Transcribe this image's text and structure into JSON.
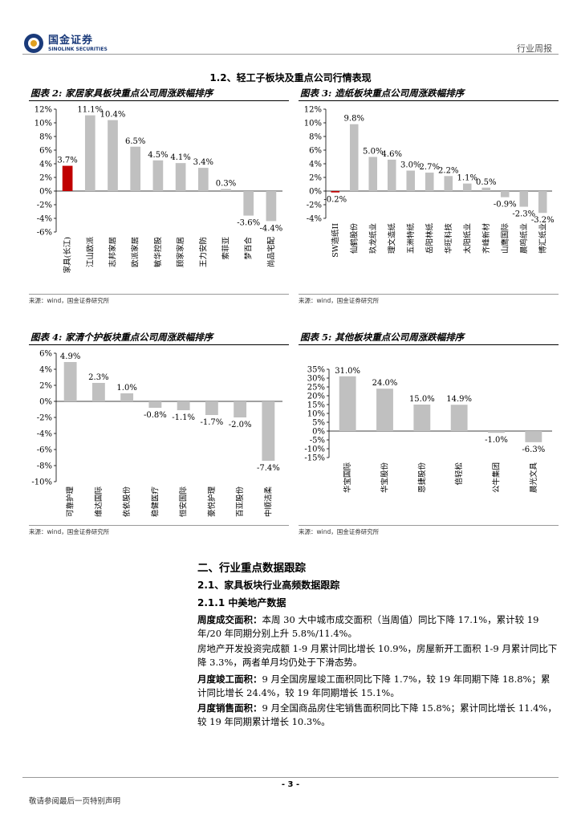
{
  "header": {
    "brand_cn": "国金证券",
    "brand_en": "SINOLINK SECURITIES",
    "report_type": "行业周报"
  },
  "section_heading": "1.2、轻工子板块及重点公司行情表现",
  "figures": [
    {
      "title": "图表 2:  家居家具板块重点公司周涨跌幅排序",
      "source": "来源：wind，国金证券研究所"
    },
    {
      "title": "图表 3:  造纸板块重点公司周涨跌幅排序",
      "source": "来源：wind，国金证券研究所"
    },
    {
      "title": "图表 4:  家清个护板块重点公司周涨跌幅排序",
      "source": "来源：wind，国金证券研究所"
    },
    {
      "title": "图表 5:  其他板块重点公司周涨跌幅排序",
      "source": "来源：wind，国金证券研究所"
    }
  ],
  "chart_data": [
    {
      "type": "bar",
      "categories": [
        "家具(长江)",
        "江山欧派",
        "志邦家居",
        "欧派家居",
        "敏华控股",
        "顾家家居",
        "王力安防",
        "索菲亚",
        "梦百合",
        "尚品宅配"
      ],
      "values": [
        3.7,
        11.1,
        10.4,
        6.5,
        4.5,
        4.1,
        3.4,
        0.3,
        -3.6,
        -4.4
      ],
      "value_labels": [
        "3.7%",
        "11.1%",
        "10.4%",
        "6.5%",
        "4.5%",
        "4.1%",
        "3.4%",
        "0.3%",
        "-3.6%",
        "-4.4%"
      ],
      "highlight_index": 0,
      "ylim": [
        -6,
        12
      ],
      "yticks": [
        -6,
        -4,
        -2,
        0,
        2,
        4,
        6,
        8,
        10,
        12
      ],
      "ytick_labels": [
        "-6%",
        "-4%",
        "-2%",
        "0%",
        "2%",
        "4%",
        "6%",
        "8%",
        "10%",
        "12%"
      ],
      "colors": {
        "bar": "#c0c0c0",
        "highlight": "#c00000"
      }
    },
    {
      "type": "bar",
      "categories": [
        "SW造纸II",
        "仙鹤股份",
        "玖龙纸业",
        "理文造纸",
        "五洲特纸",
        "岳阳林纸",
        "华旺科技",
        "太阳纸业",
        "齐峰新材",
        "山鹰国际",
        "晨鸣纸业",
        "博汇纸业"
      ],
      "values": [
        -0.2,
        9.8,
        5.0,
        4.6,
        3.0,
        2.7,
        2.2,
        1.1,
        0.5,
        -0.9,
        -2.3,
        -3.2
      ],
      "value_labels": [
        "-0.2%",
        "9.8%",
        "5.0%",
        "4.6%",
        "3.0%",
        "2.7%",
        "2.2%",
        "1.1%",
        "0.5%",
        "-0.9%",
        "-2.3%",
        "-3.2%"
      ],
      "highlight_index": 0,
      "ylim": [
        -4,
        12
      ],
      "yticks": [
        -4,
        -2,
        0,
        2,
        4,
        6,
        8,
        10,
        12
      ],
      "ytick_labels": [
        "-4%",
        "-2%",
        "0%",
        "2%",
        "4%",
        "6%",
        "8%",
        "10%",
        "12%"
      ],
      "colors": {
        "bar": "#c0c0c0",
        "highlight": "#c00000"
      }
    },
    {
      "type": "bar",
      "categories": [
        "可靠护理",
        "维达国际",
        "依依股份",
        "稳健医疗",
        "恒安国际",
        "豪悦护理",
        "百亚股份",
        "中顺洁柔"
      ],
      "values": [
        4.9,
        2.3,
        1.0,
        -0.8,
        -1.1,
        -1.7,
        -2.0,
        -7.4
      ],
      "value_labels": [
        "4.9%",
        "2.3%",
        "1.0%",
        "-0.8%",
        "-1.1%",
        "-1.7%",
        "-2.0%",
        "-7.4%"
      ],
      "highlight_index": null,
      "ylim": [
        -10,
        6
      ],
      "yticks": [
        -10,
        -8,
        -6,
        -4,
        -2,
        0,
        2,
        4,
        6
      ],
      "ytick_labels": [
        "-10%",
        "-8%",
        "-6%",
        "-4%",
        "-2%",
        "0%",
        "2%",
        "4%",
        "6%"
      ],
      "colors": {
        "bar": "#c0c0c0",
        "highlight": "#c00000"
      }
    },
    {
      "type": "bar",
      "categories": [
        "华宝国际",
        "华宝股份",
        "恩捷股份",
        "倍轻松",
        "公牛集团",
        "晨光文具"
      ],
      "values": [
        31.0,
        24.0,
        15.0,
        14.9,
        -1.0,
        -6.3
      ],
      "value_labels": [
        "31.0%",
        "24.0%",
        "15.0%",
        "14.9%",
        "-1.0%",
        "-6.3%"
      ],
      "highlight_index": null,
      "ylim": [
        -15,
        35
      ],
      "yticks": [
        -15,
        -10,
        -5,
        0,
        5,
        10,
        15,
        20,
        25,
        30,
        35
      ],
      "ytick_labels": [
        "-15%",
        "-10%",
        "-5%",
        "0%",
        "5%",
        "10%",
        "15%",
        "20%",
        "25%",
        "30%",
        "35%"
      ],
      "colors": {
        "bar": "#c0c0c0",
        "highlight": "#c00000"
      }
    }
  ],
  "section2": {
    "title": "二、行业重点数据跟踪",
    "sub1": "2.1、家具板块行业高频数据跟踪",
    "sub2": "2.1.1 中美地产数据",
    "p1_label": "周度成交面积：",
    "p1_text": "本周 30 大中城市成交面积（当周值）同比下降 17.1%，累计较 19 年/20 年同期分别上升 5.8%/11.4%。",
    "p2_text": "房地产开发投资完成额 1-9 月累计同比增长 10.9%，房屋新开工面积 1-9 月累计同比下降 3.3%，两者单月均仍处于下滑态势。",
    "p3_label": "月度竣工面积：",
    "p3_text": "9 月全国房屋竣工面积同比下降 1.7%，较 19 年同期下降 18.8%；累计同比增长 24.4%，较 19 年同期增长 15.1%。",
    "p4_label": "月度销售面积：",
    "p4_text": "9 月全国商品房住宅销售面积同比下降 15.8%；累计同比增长 11.4%，较 19 年同期累计增长 10.3%。"
  },
  "footer": {
    "page_number": "- 3 -",
    "note": "敬请参阅最后一页特别声明"
  }
}
